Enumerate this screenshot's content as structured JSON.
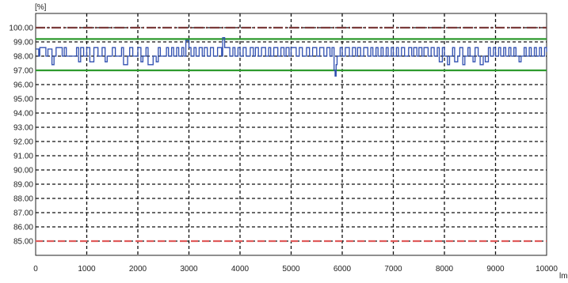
{
  "chart_data": {
    "type": "line",
    "title": "",
    "ylabel": "[%]",
    "xlabel": "lm",
    "xlim": [
      0,
      10000
    ],
    "ylim": [
      84,
      101
    ],
    "x_ticks": [
      0,
      1000,
      2000,
      3000,
      4000,
      5000,
      6000,
      7000,
      8000,
      9000,
      10000
    ],
    "x_tick_labels": [
      "0",
      "1000",
      "2000",
      "3000",
      "4000",
      "5000",
      "6000",
      "7000",
      "8000",
      "9000",
      "10000"
    ],
    "y_ticks": [
      85,
      86,
      87,
      88,
      89,
      90,
      91,
      92,
      93,
      94,
      95,
      96,
      97,
      98,
      99,
      100
    ],
    "y_tick_labels": [
      "85.00",
      "86.00",
      "87.00",
      "88.00",
      "89.00",
      "90.00",
      "91.00",
      "92.00",
      "93.00",
      "94.00",
      "95.00",
      "96.00",
      "97.00",
      "98.00",
      "99.00",
      "100.00"
    ],
    "grid": "dashed",
    "reference_lines": [
      {
        "y": 100.0,
        "color": "#7a3b3b",
        "style": "dash-dot"
      },
      {
        "y": 99.2,
        "color": "#2e9a2e",
        "style": "solid"
      },
      {
        "y": 97.0,
        "color": "#2e9a2e",
        "style": "solid"
      },
      {
        "y": 85.0,
        "color": "#e05a5a",
        "style": "dashed"
      }
    ],
    "series": [
      {
        "color": "#2f4fb0",
        "x": [
          0,
          60,
          80,
          200,
          240,
          320,
          360,
          400,
          520,
          560,
          600,
          800,
          840,
          880,
          940,
          1000,
          1060,
          1140,
          1220,
          1300,
          1360,
          1400,
          1500,
          1560,
          1680,
          1720,
          1800,
          1840,
          1900,
          2000,
          2060,
          2100,
          2160,
          2200,
          2300,
          2360,
          2400,
          2440,
          2560,
          2600,
          2660,
          2700,
          2760,
          2800,
          2860,
          2900,
          2940,
          3000,
          3040,
          3100,
          3140,
          3200,
          3260,
          3300,
          3360,
          3420,
          3480,
          3560,
          3640,
          3660,
          3700,
          3800,
          3860,
          3900,
          3960,
          4000,
          4060,
          4120,
          4200,
          4260,
          4300,
          4360,
          4420,
          4500,
          4560,
          4600,
          4660,
          4740,
          4800,
          4860,
          4900,
          4960,
          5000,
          5100,
          5160,
          5220,
          5300,
          5360,
          5420,
          5500,
          5560,
          5640,
          5700,
          5760,
          5800,
          5840,
          5860,
          5880,
          5900,
          5960,
          6000,
          6060,
          6140,
          6200,
          6260,
          6300,
          6360,
          6420,
          6500,
          6560,
          6600,
          6660,
          6700,
          6760,
          6800,
          6860,
          6900,
          6960,
          7000,
          7060,
          7100,
          7160,
          7220,
          7300,
          7360,
          7400,
          7460,
          7500,
          7560,
          7600,
          7680,
          7740,
          7800,
          7860,
          7900,
          7960,
          8000,
          8060,
          8100,
          8160,
          8200,
          8260,
          8300,
          8360,
          8400,
          8460,
          8500,
          8560,
          8600,
          8660,
          8700,
          8760,
          8800,
          8860,
          8900,
          8960,
          9000,
          9060,
          9100,
          9160,
          9200,
          9260,
          9300,
          9360,
          9400,
          9460,
          9500,
          9560,
          9600,
          9660,
          9700,
          9760,
          9800,
          9860,
          9900,
          9960,
          10000
        ],
        "y": [
          98.5,
          98.0,
          98.6,
          98.0,
          98.5,
          97.4,
          98.0,
          98.6,
          98.0,
          98.6,
          98.0,
          98.6,
          97.6,
          98.6,
          98.0,
          98.6,
          97.6,
          98.6,
          98.0,
          98.6,
          97.6,
          98.0,
          98.6,
          98.0,
          98.6,
          97.4,
          98.0,
          98.6,
          98.0,
          98.6,
          97.6,
          98.0,
          98.6,
          97.4,
          98.0,
          97.6,
          98.6,
          98.0,
          98.6,
          98.0,
          98.6,
          98.0,
          98.6,
          98.0,
          98.6,
          98.0,
          99.1,
          98.6,
          98.0,
          98.6,
          98.0,
          98.6,
          98.0,
          98.6,
          98.0,
          98.6,
          98.0,
          98.6,
          98.0,
          99.3,
          98.6,
          98.0,
          98.6,
          98.0,
          98.6,
          98.0,
          98.6,
          98.0,
          98.6,
          98.0,
          98.6,
          98.0,
          98.6,
          98.0,
          98.6,
          98.0,
          98.6,
          98.0,
          98.6,
          98.0,
          98.6,
          98.0,
          98.6,
          98.0,
          98.6,
          98.0,
          98.6,
          98.0,
          98.6,
          98.0,
          98.6,
          98.0,
          98.6,
          98.0,
          98.6,
          97.0,
          96.6,
          97.4,
          98.0,
          98.6,
          98.0,
          98.6,
          98.0,
          98.6,
          98.0,
          98.6,
          98.0,
          98.6,
          98.0,
          98.6,
          98.0,
          98.6,
          98.0,
          98.6,
          98.0,
          98.6,
          98.0,
          98.6,
          98.0,
          98.6,
          98.0,
          98.6,
          98.0,
          98.6,
          98.0,
          98.6,
          98.0,
          98.6,
          98.0,
          98.6,
          98.0,
          98.6,
          98.0,
          98.6,
          97.6,
          98.6,
          98.0,
          97.4,
          98.0,
          98.6,
          97.6,
          98.0,
          98.6,
          97.4,
          98.0,
          98.6,
          98.0,
          97.6,
          98.6,
          98.0,
          97.4,
          98.0,
          97.6,
          98.6,
          98.0,
          98.6,
          98.0,
          98.6,
          98.0,
          98.6,
          98.0,
          98.6,
          98.0,
          98.6,
          98.0,
          97.6,
          98.0,
          98.6,
          98.0,
          98.6,
          98.0,
          98.6,
          98.0,
          98.6,
          98.0,
          98.6,
          98.3
        ]
      }
    ]
  }
}
